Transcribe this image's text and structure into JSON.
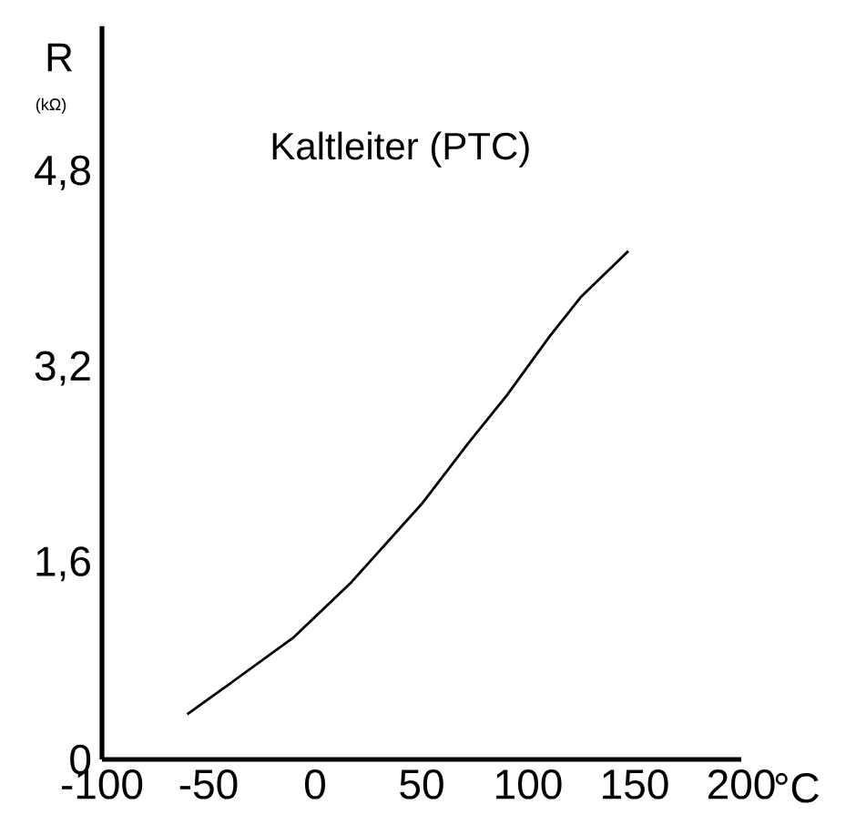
{
  "chart_data": {
    "type": "line",
    "title": "Kaltleiter (PTC)",
    "xlabel": "°C",
    "ylabel": "R",
    "annotations": [
      "(kΩ)"
    ],
    "x": [
      -60,
      -40,
      -10,
      17,
      50,
      72,
      90,
      110,
      125,
      147
    ],
    "values": [
      0.37,
      0.62,
      1.0,
      1.45,
      2.09,
      2.59,
      2.98,
      3.46,
      3.79,
      4.16
    ],
    "color": "#000000",
    "xlim": [
      -100,
      200
    ],
    "ylim": [
      0,
      6
    ],
    "xticks": [
      -100,
      -50,
      0,
      50,
      100,
      150,
      200
    ],
    "yticks": [
      0,
      {
        "value": 1.6,
        "label": "1,6"
      },
      {
        "value": 3.2,
        "label": "3,2"
      },
      {
        "value": 4.8,
        "label": "4,8"
      }
    ],
    "grid": false,
    "marker": "none",
    "line_style": "solid"
  }
}
